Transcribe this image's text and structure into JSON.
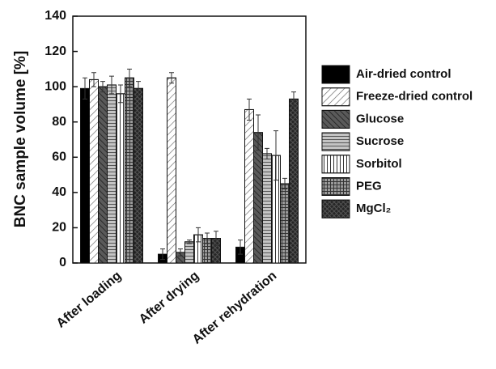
{
  "chart_data": {
    "type": "bar",
    "y_label": "BNC sample volume [%]",
    "categories": [
      "After loading",
      "After drying",
      "After rehydration"
    ],
    "ylim": [
      0,
      140
    ],
    "yticks": [
      0,
      20,
      40,
      60,
      80,
      100,
      120,
      140
    ],
    "series": [
      {
        "name": "Air-dried control",
        "color": "#000000",
        "hatch": "solid",
        "values": [
          99,
          5,
          9
        ],
        "errors": [
          6,
          3,
          4
        ]
      },
      {
        "name": "Freeze-dried control",
        "color": "#ffffff",
        "hatch": "diag-up",
        "values": [
          104,
          105,
          87
        ],
        "errors": [
          4,
          3,
          6
        ]
      },
      {
        "name": "Glucose",
        "color": "#5a5a5a",
        "hatch": "diag-down",
        "values": [
          100,
          6,
          74
        ],
        "errors": [
          3,
          2,
          10
        ]
      },
      {
        "name": "Sucrose",
        "color": "#c4c4c4",
        "hatch": "horizontal",
        "values": [
          101,
          12,
          62
        ],
        "errors": [
          5,
          1,
          3
        ]
      },
      {
        "name": "Sorbitol",
        "color": "#ffffff",
        "hatch": "vertical",
        "values": [
          96,
          16,
          61
        ],
        "errors": [
          5,
          4,
          14
        ]
      },
      {
        "name": "PEG",
        "color": "#9a9a9a",
        "hatch": "grid",
        "values": [
          105,
          14,
          45
        ],
        "errors": [
          5,
          3,
          3
        ]
      },
      {
        "name": "MgCl₂",
        "color": "#262626",
        "hatch": "cross",
        "values": [
          99,
          14,
          93
        ],
        "errors": [
          4,
          4,
          4
        ]
      }
    ]
  }
}
